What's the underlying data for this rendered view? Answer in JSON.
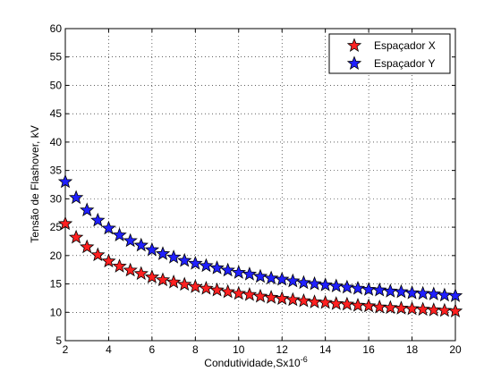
{
  "chart_data": {
    "type": "scatter",
    "xlabel": "Condutividade,Sx10",
    "xlabel_exponent": "-6",
    "ylabel": "Tensão de Flashover, kV",
    "xlim": [
      2,
      20
    ],
    "ylim": [
      5,
      60
    ],
    "xticks": [
      2,
      4,
      6,
      8,
      10,
      12,
      14,
      16,
      18,
      20
    ],
    "yticks": [
      5,
      10,
      15,
      20,
      25,
      30,
      35,
      40,
      45,
      50,
      55,
      60
    ],
    "grid": true,
    "legend_position": "top-right",
    "marker": "star",
    "x": [
      2.0,
      2.5,
      3.0,
      3.5,
      4.0,
      4.5,
      5.0,
      5.5,
      6.0,
      6.5,
      7.0,
      7.5,
      8.0,
      8.5,
      9.0,
      9.5,
      10.0,
      10.5,
      11.0,
      11.5,
      12.0,
      12.5,
      13.0,
      13.5,
      14.0,
      14.5,
      15.0,
      15.5,
      16.0,
      16.5,
      17.0,
      17.5,
      18.0,
      18.5,
      19.0,
      19.5,
      20.0
    ],
    "series": [
      {
        "name": "Espaçador X",
        "color": "#ff2020",
        "values": [
          25.6,
          23.2,
          21.5,
          20.1,
          19.0,
          18.1,
          17.4,
          16.8,
          16.2,
          15.7,
          15.3,
          14.9,
          14.5,
          14.2,
          13.9,
          13.6,
          13.3,
          13.1,
          12.8,
          12.6,
          12.4,
          12.2,
          12.0,
          11.8,
          11.7,
          11.5,
          11.4,
          11.2,
          11.1,
          10.9,
          10.8,
          10.7,
          10.6,
          10.5,
          10.4,
          10.3,
          10.2
        ]
      },
      {
        "name": "Espaçador Y",
        "color": "#2020ff",
        "values": [
          33.0,
          30.2,
          28.0,
          26.2,
          24.8,
          23.6,
          22.6,
          21.8,
          21.0,
          20.3,
          19.7,
          19.1,
          18.6,
          18.2,
          17.8,
          17.4,
          17.0,
          16.7,
          16.3,
          16.0,
          15.8,
          15.5,
          15.2,
          15.0,
          14.8,
          14.6,
          14.4,
          14.2,
          14.0,
          13.9,
          13.7,
          13.6,
          13.4,
          13.3,
          13.2,
          13.0,
          12.9
        ]
      }
    ]
  }
}
